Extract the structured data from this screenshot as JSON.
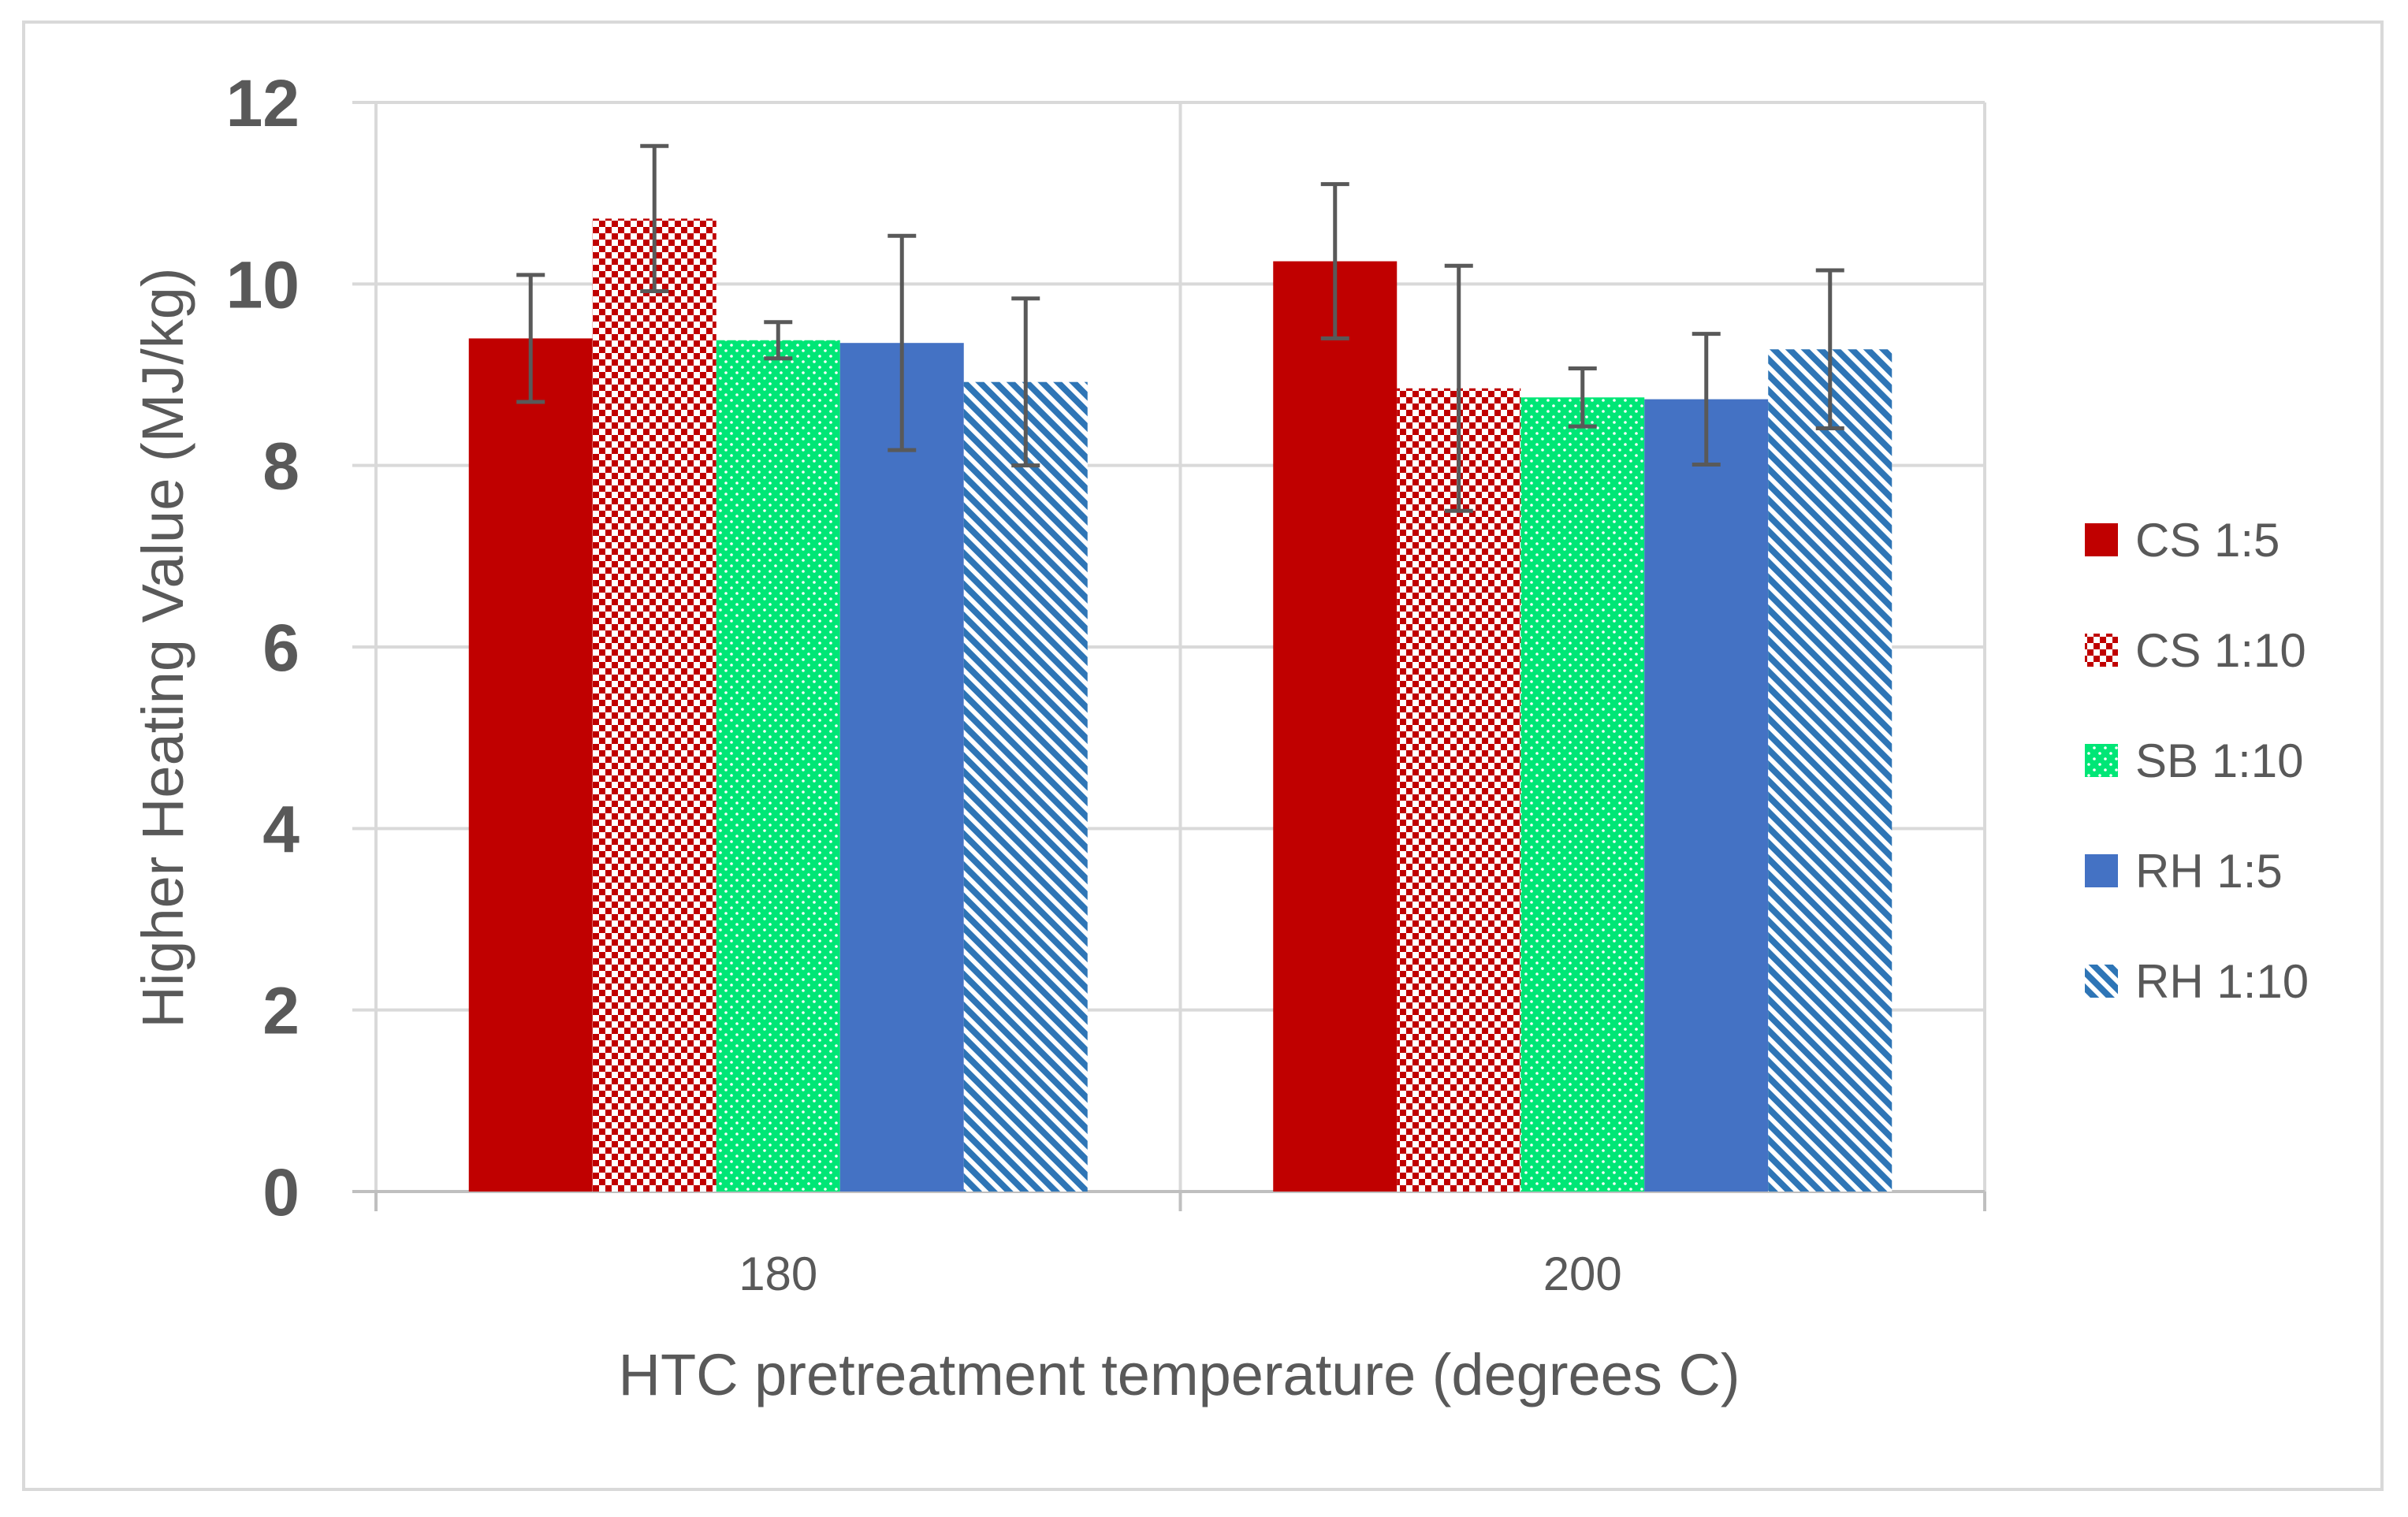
{
  "chart_data": {
    "type": "bar",
    "title": "",
    "xlabel": "HTC pretreatment temperature (degrees C)",
    "ylabel": "Higher Heating Value (MJ/kg)",
    "ylim": [
      0,
      12
    ],
    "yticks": [
      0,
      2,
      4,
      6,
      8,
      10,
      12
    ],
    "grid": true,
    "legend_position": "right",
    "categories": [
      "180",
      "200"
    ],
    "series": [
      {
        "name": "CS 1:5",
        "pattern": "solid",
        "color": "#c00000",
        "values": [
          9.4,
          10.25
        ],
        "errors": [
          0.7,
          0.85
        ]
      },
      {
        "name": "CS 1:10",
        "pattern": "checker",
        "color": "#c00000",
        "values": [
          10.72,
          8.85
        ],
        "errors": [
          0.8,
          1.35
        ]
      },
      {
        "name": "SB 1:10",
        "pattern": "dots",
        "color": "#00e676",
        "values": [
          9.38,
          8.75
        ],
        "errors": [
          0.2,
          0.32
        ]
      },
      {
        "name": "RH 1:5",
        "pattern": "solid",
        "color": "#4472c4",
        "values": [
          9.35,
          8.73
        ],
        "errors": [
          1.18,
          0.72
        ]
      },
      {
        "name": "RH 1:10",
        "pattern": "diagonal",
        "color": "#2e75b6",
        "values": [
          8.92,
          9.28
        ],
        "errors": [
          0.92,
          0.87
        ]
      }
    ]
  }
}
